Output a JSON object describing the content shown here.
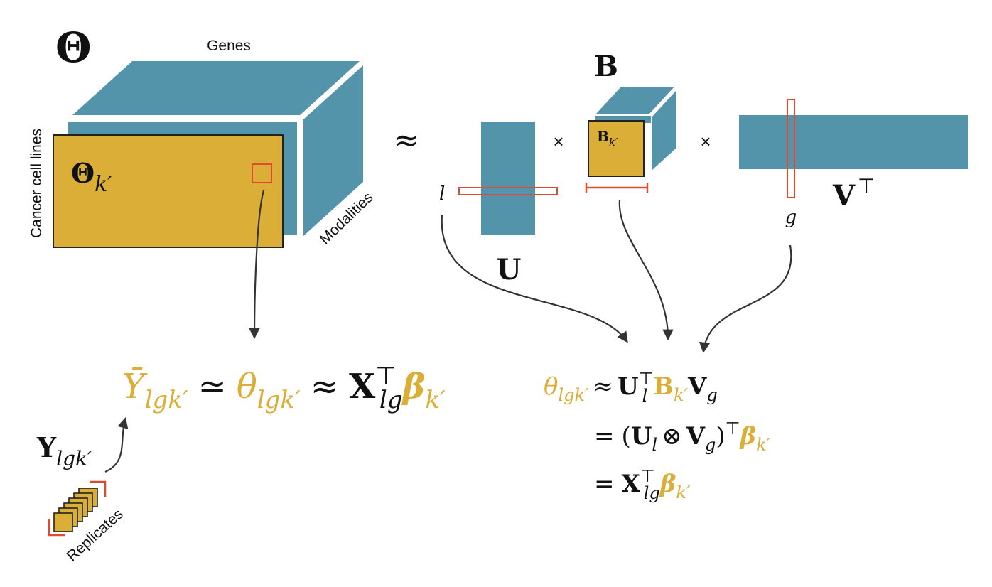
{
  "colors": {
    "teal": "#5394AB",
    "gold": "#DBAE38",
    "red": "#E04A2E",
    "ink": "#111111",
    "arrow": "#333333"
  },
  "tensor": {
    "symbol": "Θ",
    "slice_symbol": "Θ",
    "slice_subscript": "k′",
    "label_genes": "Genes",
    "label_cell_lines": "Cancer cell lines",
    "label_modalities": "Modalities",
    "approx": "≈"
  },
  "factors": {
    "u_label": "U",
    "l_index": "l",
    "times": "×",
    "b_label": "B",
    "b_slice_label": "B",
    "b_slice_subscript": "k′",
    "v_label": "V",
    "v_transpose": "⊤",
    "g_index": "g"
  },
  "left_equation": {
    "ybar": "Ȳ",
    "ybar_sub": "lgk′",
    "simeq": "≃",
    "theta": "θ",
    "theta_sub": "lgk′",
    "approx": "≈",
    "x": "X",
    "x_sup": "⊤",
    "x_sub": "lg",
    "beta": "β",
    "beta_sub": "k′"
  },
  "replicates": {
    "y": "Y",
    "y_sub": "lgk′",
    "label": "Replicates"
  },
  "right_equation": {
    "line1": {
      "theta": "θ",
      "theta_sub": "lgk′",
      "approx": "≈",
      "u": "U",
      "u_sup": "⊤",
      "u_sub": "l",
      "b": "B",
      "b_sub": "k′",
      "v": "V",
      "v_sub": "g"
    },
    "line2": {
      "eq": "=",
      "open": "(",
      "u": "U",
      "u_sub": "l",
      "otimes": "⊗",
      "v": "V",
      "v_sub": "g",
      "close": ")",
      "sup": "⊤",
      "beta": "β",
      "beta_sub": "k′"
    },
    "line3": {
      "eq": "=",
      "x": "X",
      "x_sup": "⊤",
      "x_sub": "lg",
      "beta": "β",
      "beta_sub": "k′"
    }
  }
}
